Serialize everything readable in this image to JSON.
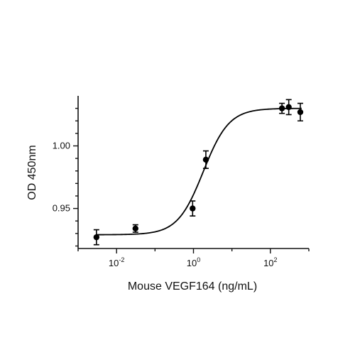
{
  "chart_data": {
    "type": "scatter",
    "xlabel": "Mouse VEGF164 (ng/mL)",
    "ylabel": "OD 450nm",
    "x_scale": "log10",
    "xlim": [
      0.001,
      1000
    ],
    "ylim": [
      0.918,
      1.04
    ],
    "x_ticks": [
      {
        "value": 0.01,
        "base": "10",
        "exp": "-2"
      },
      {
        "value": 1,
        "base": "10",
        "exp": "0"
      },
      {
        "value": 100,
        "base": "10",
        "exp": "2"
      }
    ],
    "y_ticks": [
      {
        "value": 0.95,
        "label": "0.95"
      },
      {
        "value": 1.0,
        "label": "1.00"
      }
    ],
    "series": [
      {
        "points": [
          {
            "x": 0.003,
            "y": 0.927,
            "err": 0.006
          },
          {
            "x": 0.031,
            "y": 0.934,
            "err": 0.003
          },
          {
            "x": 0.95,
            "y": 0.95,
            "err": 0.006
          },
          {
            "x": 2.1,
            "y": 0.989,
            "err": 0.007
          },
          {
            "x": 200,
            "y": 1.03,
            "err": 0.004
          },
          {
            "x": 300,
            "y": 1.031,
            "err": 0.006
          },
          {
            "x": 600,
            "y": 1.027,
            "err": 0.007
          }
        ],
        "fit": {
          "model": "4PL",
          "bottom": 0.929,
          "top": 1.03,
          "ec50": 1.8,
          "hill": 1.3
        }
      }
    ]
  }
}
